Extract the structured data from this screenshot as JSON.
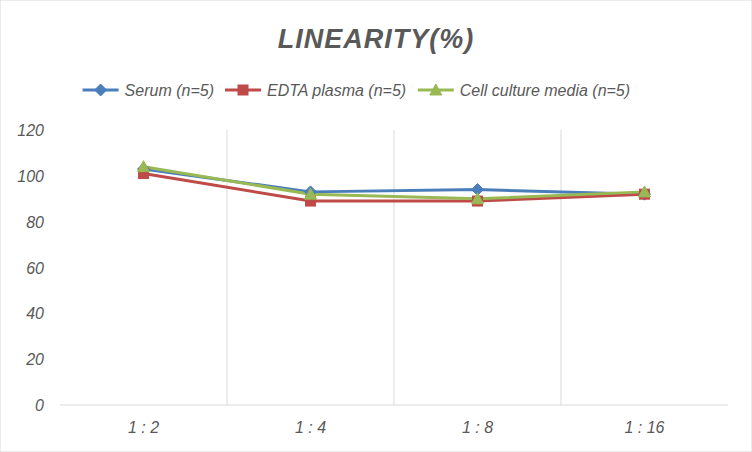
{
  "chart_data": {
    "type": "line",
    "title": "LINEARITY(%)",
    "categories": [
      "1 : 2",
      "1 : 4",
      "1 : 8",
      "1 : 16"
    ],
    "series": [
      {
        "name": "Serum (n=5)",
        "color": "#4a7ebb",
        "marker": "diamond",
        "values": [
          103,
          93,
          94,
          92
        ]
      },
      {
        "name": "EDTA plasma (n=5)",
        "color": "#be4b48",
        "marker": "square",
        "values": [
          101,
          89,
          89,
          92
        ]
      },
      {
        "name": "Cell culture media (n=5)",
        "color": "#98b954",
        "marker": "triangle",
        "values": [
          104,
          92,
          90,
          93
        ]
      }
    ],
    "ylim": [
      0,
      120
    ],
    "yticks": [
      0,
      20,
      40,
      60,
      80,
      100,
      120
    ],
    "grid": true,
    "legend": "top"
  }
}
